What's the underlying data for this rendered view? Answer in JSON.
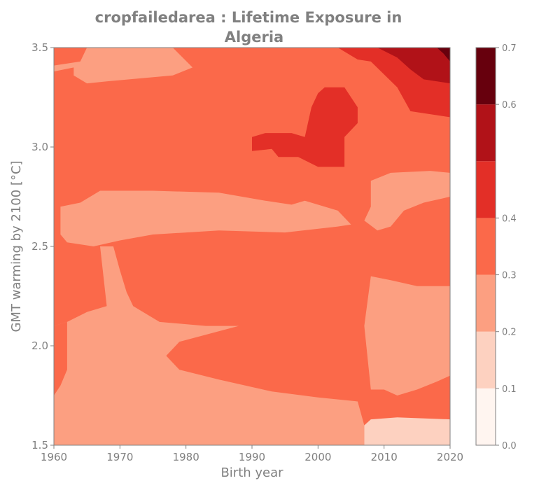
{
  "chart_data": {
    "type": "heatmap",
    "title_lines": [
      "cropfailedarea : Lifetime Exposure in",
      "Algeria"
    ],
    "xlabel": "Birth year",
    "ylabel": "GMT warming by 2100 [°C]",
    "xlim": [
      1960,
      2020
    ],
    "ylim": [
      1.5,
      3.5
    ],
    "xticks": [
      1960,
      1970,
      1980,
      1990,
      2000,
      2010,
      2020
    ],
    "yticks": [
      1.5,
      2.0,
      2.5,
      3.0,
      3.5
    ],
    "yticklabels": [
      "1.5",
      "2.0",
      "2.5",
      "3.0",
      "3.5"
    ],
    "colorbar": {
      "levels": [
        0.0,
        0.1,
        0.2,
        0.3,
        0.4,
        0.5,
        0.6,
        0.7
      ],
      "ticks": [
        0.0,
        0.1,
        0.2,
        0.3,
        0.4,
        0.6,
        0.7
      ],
      "ticklabels": [
        "0.0",
        "0.1",
        "0.2",
        "0.3",
        "0.4",
        "0.6",
        "0.7"
      ],
      "colors": [
        "#fff5f0",
        "#fdd1c0",
        "#fc9f81",
        "#fb694a",
        "#e32f27",
        "#b11218",
        "#67000d"
      ],
      "colormap": "Reds"
    },
    "base_color_index": 3,
    "regions": [
      {
        "level": 2,
        "points": [
          [
            1960,
            3.41
          ],
          [
            1964,
            3.43
          ],
          [
            1965,
            3.5
          ],
          [
            1978,
            3.5
          ],
          [
            1981,
            3.4
          ],
          [
            1978,
            3.36
          ],
          [
            1968,
            3.33
          ],
          [
            1965,
            3.32
          ],
          [
            1963,
            3.36
          ],
          [
            1963,
            3.4
          ],
          [
            1960,
            3.38
          ]
        ]
      },
      {
        "level": 2,
        "points": [
          [
            1961,
            2.7
          ],
          [
            1964,
            2.72
          ],
          [
            1967,
            2.78
          ],
          [
            1975,
            2.78
          ],
          [
            1985,
            2.77
          ],
          [
            1992,
            2.73
          ],
          [
            1996,
            2.71
          ],
          [
            1998,
            2.73
          ],
          [
            2003,
            2.68
          ],
          [
            2005,
            2.61
          ],
          [
            2003,
            2.6
          ],
          [
            1995,
            2.57
          ],
          [
            1985,
            2.58
          ],
          [
            1975,
            2.56
          ],
          [
            1970,
            2.53
          ],
          [
            1966,
            2.5
          ],
          [
            1962,
            2.52
          ],
          [
            1961,
            2.56
          ]
        ]
      },
      {
        "level": 2,
        "points": [
          [
            1960,
            2.1
          ],
          [
            1962,
            2.12
          ],
          [
            1965,
            2.17
          ],
          [
            1968,
            2.2
          ],
          [
            1967,
            2.5
          ],
          [
            1969,
            2.5
          ],
          [
            1970,
            2.38
          ],
          [
            1971,
            2.27
          ],
          [
            1972,
            2.2
          ],
          [
            1976,
            2.12
          ],
          [
            1983,
            2.1
          ],
          [
            1988,
            2.1
          ],
          [
            1979,
            2.02
          ],
          [
            1977,
            1.95
          ],
          [
            1979,
            1.88
          ],
          [
            1985,
            1.83
          ],
          [
            1993,
            1.77
          ],
          [
            2000,
            1.74
          ],
          [
            2006,
            1.72
          ],
          [
            2007,
            1.6
          ],
          [
            2007,
            1.5
          ],
          [
            1960,
            1.5
          ]
        ]
      },
      {
        "level": 2,
        "points": [
          [
            2007,
            2.63
          ],
          [
            2008,
            2.7
          ],
          [
            2008,
            2.83
          ],
          [
            2011,
            2.87
          ],
          [
            2017,
            2.88
          ],
          [
            2020,
            2.87
          ],
          [
            2020,
            2.75
          ],
          [
            2016,
            2.72
          ],
          [
            2013,
            2.68
          ],
          [
            2011,
            2.6
          ],
          [
            2009,
            2.58
          ]
        ]
      },
      {
        "level": 2,
        "points": [
          [
            2007,
            2.1
          ],
          [
            2008,
            2.35
          ],
          [
            2011,
            2.33
          ],
          [
            2015,
            2.3
          ],
          [
            2020,
            2.3
          ],
          [
            2020,
            1.85
          ],
          [
            2018,
            1.82
          ],
          [
            2015,
            1.78
          ],
          [
            2012,
            1.75
          ],
          [
            2010,
            1.78
          ],
          [
            2008,
            1.78
          ]
        ]
      },
      {
        "level": 1,
        "points": [
          [
            2007,
            1.5
          ],
          [
            2007,
            1.6
          ],
          [
            2008,
            1.63
          ],
          [
            2012,
            1.64
          ],
          [
            2020,
            1.63
          ],
          [
            2020,
            1.5
          ]
        ]
      },
      {
        "level": 3,
        "points": [
          [
            1960,
            2.1
          ],
          [
            1962,
            2.12
          ],
          [
            1962,
            1.88
          ],
          [
            1961,
            1.8
          ],
          [
            1960,
            1.75
          ]
        ]
      },
      {
        "level": 4,
        "points": [
          [
            2003,
            3.5
          ],
          [
            2020,
            3.5
          ],
          [
            2020,
            3.15
          ],
          [
            2014,
            3.18
          ],
          [
            2012,
            3.3
          ],
          [
            2008,
            3.43
          ],
          [
            2006,
            3.44
          ]
        ]
      },
      {
        "level": 4,
        "points": [
          [
            2001,
            3.3
          ],
          [
            2004,
            3.3
          ],
          [
            2006,
            3.2
          ],
          [
            2006,
            3.12
          ],
          [
            2004,
            3.05
          ],
          [
            2004,
            2.9
          ],
          [
            2000,
            2.9
          ],
          [
            1997,
            2.95
          ],
          [
            1994,
            2.95
          ],
          [
            1993,
            2.99
          ],
          [
            1990,
            2.98
          ],
          [
            1990,
            3.05
          ],
          [
            1992,
            3.07
          ],
          [
            1996,
            3.07
          ],
          [
            1998,
            3.05
          ],
          [
            1999,
            3.2
          ],
          [
            2000,
            3.27
          ]
        ]
      },
      {
        "level": 5,
        "points": [
          [
            2009,
            3.5
          ],
          [
            2020,
            3.5
          ],
          [
            2020,
            3.32
          ],
          [
            2016,
            3.34
          ],
          [
            2014,
            3.39
          ],
          [
            2012,
            3.45
          ]
        ]
      },
      {
        "level": 6,
        "points": [
          [
            2018,
            3.5
          ],
          [
            2020,
            3.5
          ],
          [
            2020,
            3.43
          ],
          [
            2019,
            3.47
          ]
        ]
      }
    ]
  }
}
